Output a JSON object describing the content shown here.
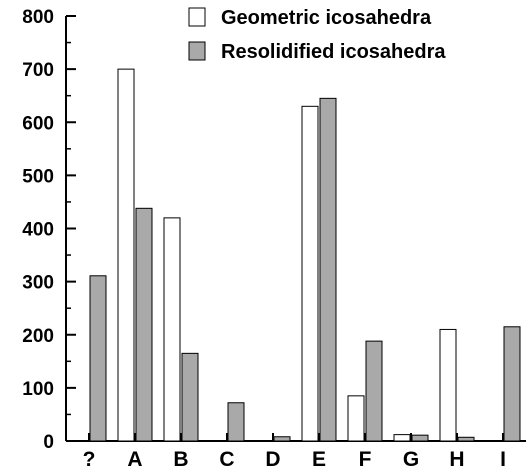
{
  "chart_data": {
    "type": "bar",
    "categories": [
      "?",
      "A",
      "B",
      "C",
      "D",
      "E",
      "F",
      "G",
      "H",
      "I"
    ],
    "series": [
      {
        "name": "Geometric icosahedra",
        "color": "#ffffff",
        "values": [
          0,
          700,
          420,
          0,
          0,
          630,
          85,
          12,
          210,
          0
        ]
      },
      {
        "name": "Resolidified icosahedra",
        "color": "#a9a9a9",
        "values": [
          311,
          438,
          165,
          72,
          8,
          645,
          188,
          11,
          7,
          215
        ]
      }
    ],
    "ylim": [
      0,
      800
    ],
    "yticks": [
      0,
      100,
      200,
      300,
      400,
      500,
      600,
      700,
      800
    ],
    "title": "",
    "xlabel": "",
    "ylabel": "",
    "grid": false,
    "legend_position": "top-right"
  }
}
